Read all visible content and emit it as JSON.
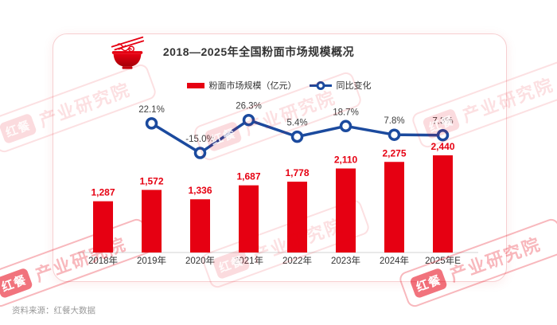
{
  "accent_color": "#e60012",
  "line_color": "#1b4a9e",
  "header": {
    "title": "2018—2025年全国粉面市场规模概况"
  },
  "legend": {
    "bar_label": "粉面市场规模（亿元）",
    "line_label": "同比变化"
  },
  "watermark": {
    "brand": "红餐",
    "org": "产业研究院"
  },
  "source": "资料来源：红餐大数据",
  "chart_data": {
    "type": "bar",
    "combo": "bar+line",
    "title": "2018—2025年全国粉面市场规模概况",
    "xlabel": "",
    "ylabel": "",
    "categories": [
      "2018年",
      "2019年",
      "2020年",
      "2021年",
      "2022年",
      "2023年",
      "2024年",
      "2025年E"
    ],
    "series": [
      {
        "name": "粉面市场规模（亿元）",
        "type": "bar",
        "color": "#e60012",
        "values": [
          1287,
          1572,
          1336,
          1687,
          1778,
          2110,
          2275,
          2440
        ],
        "labels": [
          "1,287",
          "1,572",
          "1,336",
          "1,687",
          "1,778",
          "2,110",
          "2,275",
          "2,440"
        ]
      },
      {
        "name": "同比变化",
        "type": "line",
        "color": "#1b4a9e",
        "start_index": 1,
        "values": [
          22.1,
          -15.0,
          26.3,
          5.4,
          18.7,
          7.8,
          7.3
        ],
        "labels": [
          "22.1%",
          "-15.0%",
          "26.3%",
          "5.4%",
          "18.7%",
          "7.8%",
          "7.3%"
        ]
      }
    ],
    "ylim": [
      0,
      2600
    ],
    "grid": false,
    "legend_position": "top"
  }
}
